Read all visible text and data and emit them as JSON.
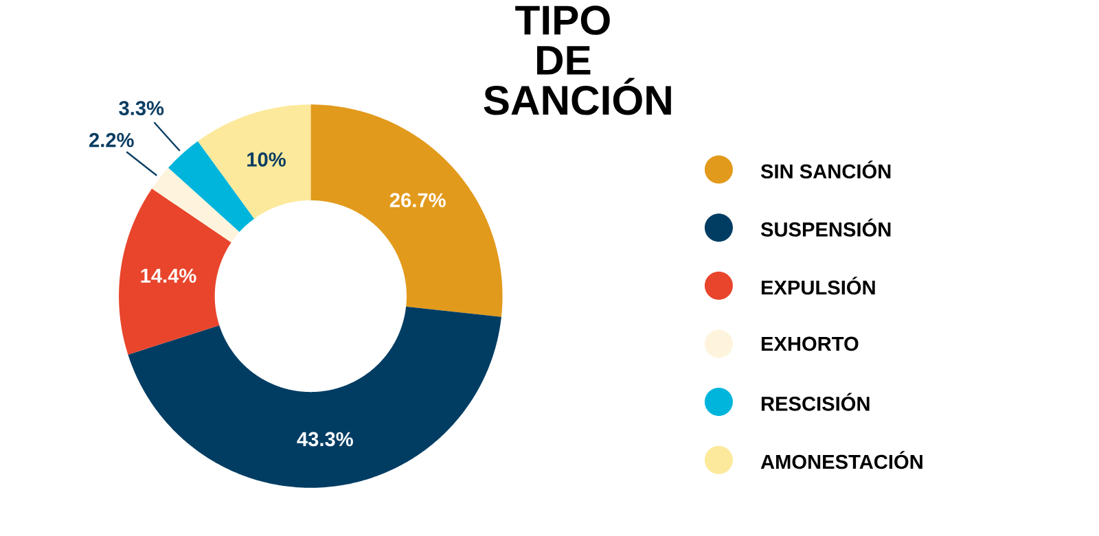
{
  "chart_data": {
    "type": "donut",
    "title": "TIPO DE SANCIÓN",
    "categories": [
      "SIN SANCIÓN",
      "SUSPENSIÓN",
      "EXPULSIÓN",
      "EXHORTO",
      "RESCISIÓN",
      "AMONESTACIÓN"
    ],
    "values": [
      26.7,
      43.3,
      14.4,
      2.2,
      3.3,
      10
    ],
    "colors": [
      "#e29a1c",
      "#013d63",
      "#e8452c",
      "#fef4dd",
      "#00b5dc",
      "#fde99b"
    ],
    "value_labels": [
      "26.7%",
      "43.3%",
      "14.4%",
      "2.2%",
      "3.3%",
      "10%"
    ],
    "legend": "right"
  }
}
